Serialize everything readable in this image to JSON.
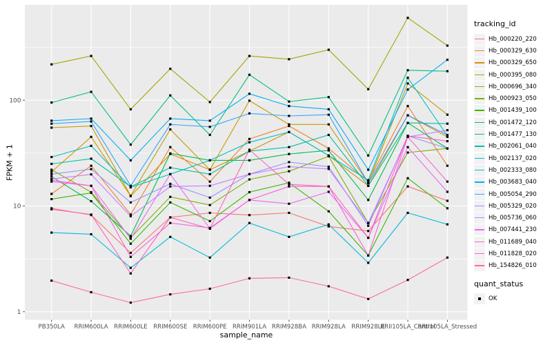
{
  "figure": {
    "background": "#FFFFFF",
    "panel_background": "#EBEBEB",
    "grid_color": "#FFFFFF",
    "axis_text_color": "#4D4D4D",
    "tick_mark_color": "#333333",
    "title_color": "#000000"
  },
  "chart_data": {
    "type": "line",
    "title": "",
    "xlabel": "sample_name",
    "ylabel": "FPKM + 1",
    "y_scale": "log10",
    "y_ticks": [
      1,
      10,
      100
    ],
    "y_minor_ticks": [
      3.162,
      31.62,
      316.2
    ],
    "y_range": [
      0.86,
      790
    ],
    "grid": "on",
    "legend_position": "right",
    "marker": {
      "shape": "square",
      "color": "#000000",
      "size": 3.2,
      "legend_label": "OK"
    },
    "categories": [
      "PB350LA",
      "RRIM600LA",
      "RRIM600LE",
      "RRIM600SE",
      "RRIM600PE",
      "RRIM901LA",
      "RRIM928BA",
      "RRIM928LA",
      "RRIM928LE",
      "RRII105LA_Control",
      "RRII105LA_Stressed"
    ],
    "series": [
      {
        "name": "Hb_000220_220",
        "color": "#F8766D",
        "values": [
          9.5,
          8.2,
          3.6,
          7.8,
          8.6,
          8.2,
          8.6,
          6.4,
          5.8,
          15.3,
          11.2
        ]
      },
      {
        "name": "Hb_000329_630",
        "color": "#EA8331",
        "values": [
          13,
          24,
          8.3,
          36,
          17,
          43,
          57,
          35,
          17,
          88,
          24
        ]
      },
      {
        "name": "Hb_000329_650",
        "color": "#D89000",
        "values": [
          21,
          45,
          12.4,
          31,
          22,
          33,
          50,
          30,
          15.5,
          72,
          45
        ]
      },
      {
        "name": "Hb_000395_080",
        "color": "#C09B00",
        "values": [
          55,
          57,
          12.5,
          53,
          22,
          99,
          59,
          59,
          16.5,
          144,
          73
        ]
      },
      {
        "name": "Hb_000696_340",
        "color": "#A3A500",
        "values": [
          218,
          262,
          82,
          198,
          96,
          262,
          244,
          300,
          127,
          600,
          328
        ]
      },
      {
        "name": "Hb_000923_050",
        "color": "#7CAE00",
        "values": [
          22,
          13.5,
          5.0,
          12.2,
          10.2,
          17.8,
          21.3,
          29.5,
          6.9,
          32,
          35
        ]
      },
      {
        "name": "Hb_001439_100",
        "color": "#39B600",
        "values": [
          11.6,
          13.3,
          4.4,
          10.8,
          7.2,
          13.5,
          16.6,
          8.9,
          3.4,
          18.3,
          9.5
        ]
      },
      {
        "name": "Hb_001472_120",
        "color": "#00BB4E",
        "values": [
          19,
          11.1,
          5.2,
          31.4,
          27,
          27,
          31,
          33.5,
          11.4,
          61,
          35
        ]
      },
      {
        "name": "Hb_001477_130",
        "color": "#00BF7D",
        "values": [
          95,
          120,
          38,
          111,
          47,
          174,
          97,
          107,
          30,
          192,
          188
        ]
      },
      {
        "name": "Hb_002061_040",
        "color": "#00C1A3",
        "values": [
          25,
          28,
          15.2,
          23,
          20,
          33,
          36,
          47,
          15.5,
          61,
          60
        ]
      },
      {
        "name": "Hb_002137_020",
        "color": "#00BFC4",
        "values": [
          29,
          37,
          15,
          20,
          27,
          40,
          50,
          30,
          17.5,
          163,
          46
        ]
      },
      {
        "name": "Hb_002333_080",
        "color": "#00BAE0",
        "values": [
          5.6,
          5.4,
          2.6,
          5.1,
          3.25,
          6.9,
          5.1,
          6.7,
          2.9,
          8.6,
          6.7
        ]
      },
      {
        "name": "Hb_003683_040",
        "color": "#00B0F6",
        "values": [
          64,
          67,
          27,
          67,
          64,
          115,
          88,
          82,
          22,
          126,
          241
        ]
      },
      {
        "name": "Hb_005054_290",
        "color": "#35A2FF",
        "values": [
          60,
          63,
          15.5,
          59,
          56,
          75,
          71,
          73,
          16.5,
          72,
          47
        ]
      },
      {
        "name": "Hb_005329_020",
        "color": "#9590FF",
        "values": [
          20,
          22.3,
          10.8,
          16.2,
          12,
          20,
          26,
          23.5,
          6.5,
          46,
          35
        ]
      },
      {
        "name": "Hb_005736_060",
        "color": "#C77CFF",
        "values": [
          18,
          19.9,
          8.0,
          15.3,
          15.5,
          20,
          23.5,
          22.4,
          6.9,
          45,
          52
        ]
      },
      {
        "name": "Hb_007441_230",
        "color": "#E76BF3",
        "values": [
          17.5,
          15.5,
          4.9,
          20,
          6.1,
          11.4,
          10.5,
          13.6,
          5.0,
          36,
          13.6
        ]
      },
      {
        "name": "Hb_011689_040",
        "color": "#FA62DB",
        "values": [
          17,
          15.5,
          3.3,
          6.9,
          6.2,
          11.4,
          15.3,
          15.3,
          3.4,
          45,
          17
        ]
      },
      {
        "name": "Hb_011828_020",
        "color": "#FF62BC",
        "values": [
          9.3,
          8.3,
          2.3,
          7.8,
          6.1,
          34,
          16,
          15.3,
          5.0,
          46,
          41
        ]
      },
      {
        "name": "Hb_154826_010",
        "color": "#FF6A98",
        "values": [
          1.97,
          1.53,
          1.22,
          1.46,
          1.65,
          2.07,
          2.1,
          1.74,
          1.32,
          2.0,
          3.25
        ]
      }
    ]
  },
  "legend": {
    "tracking_title": "tracking_id",
    "quant_title": "quant_status",
    "quant_items": [
      {
        "label": "OK"
      }
    ],
    "key_background": "#F2F2F2"
  }
}
